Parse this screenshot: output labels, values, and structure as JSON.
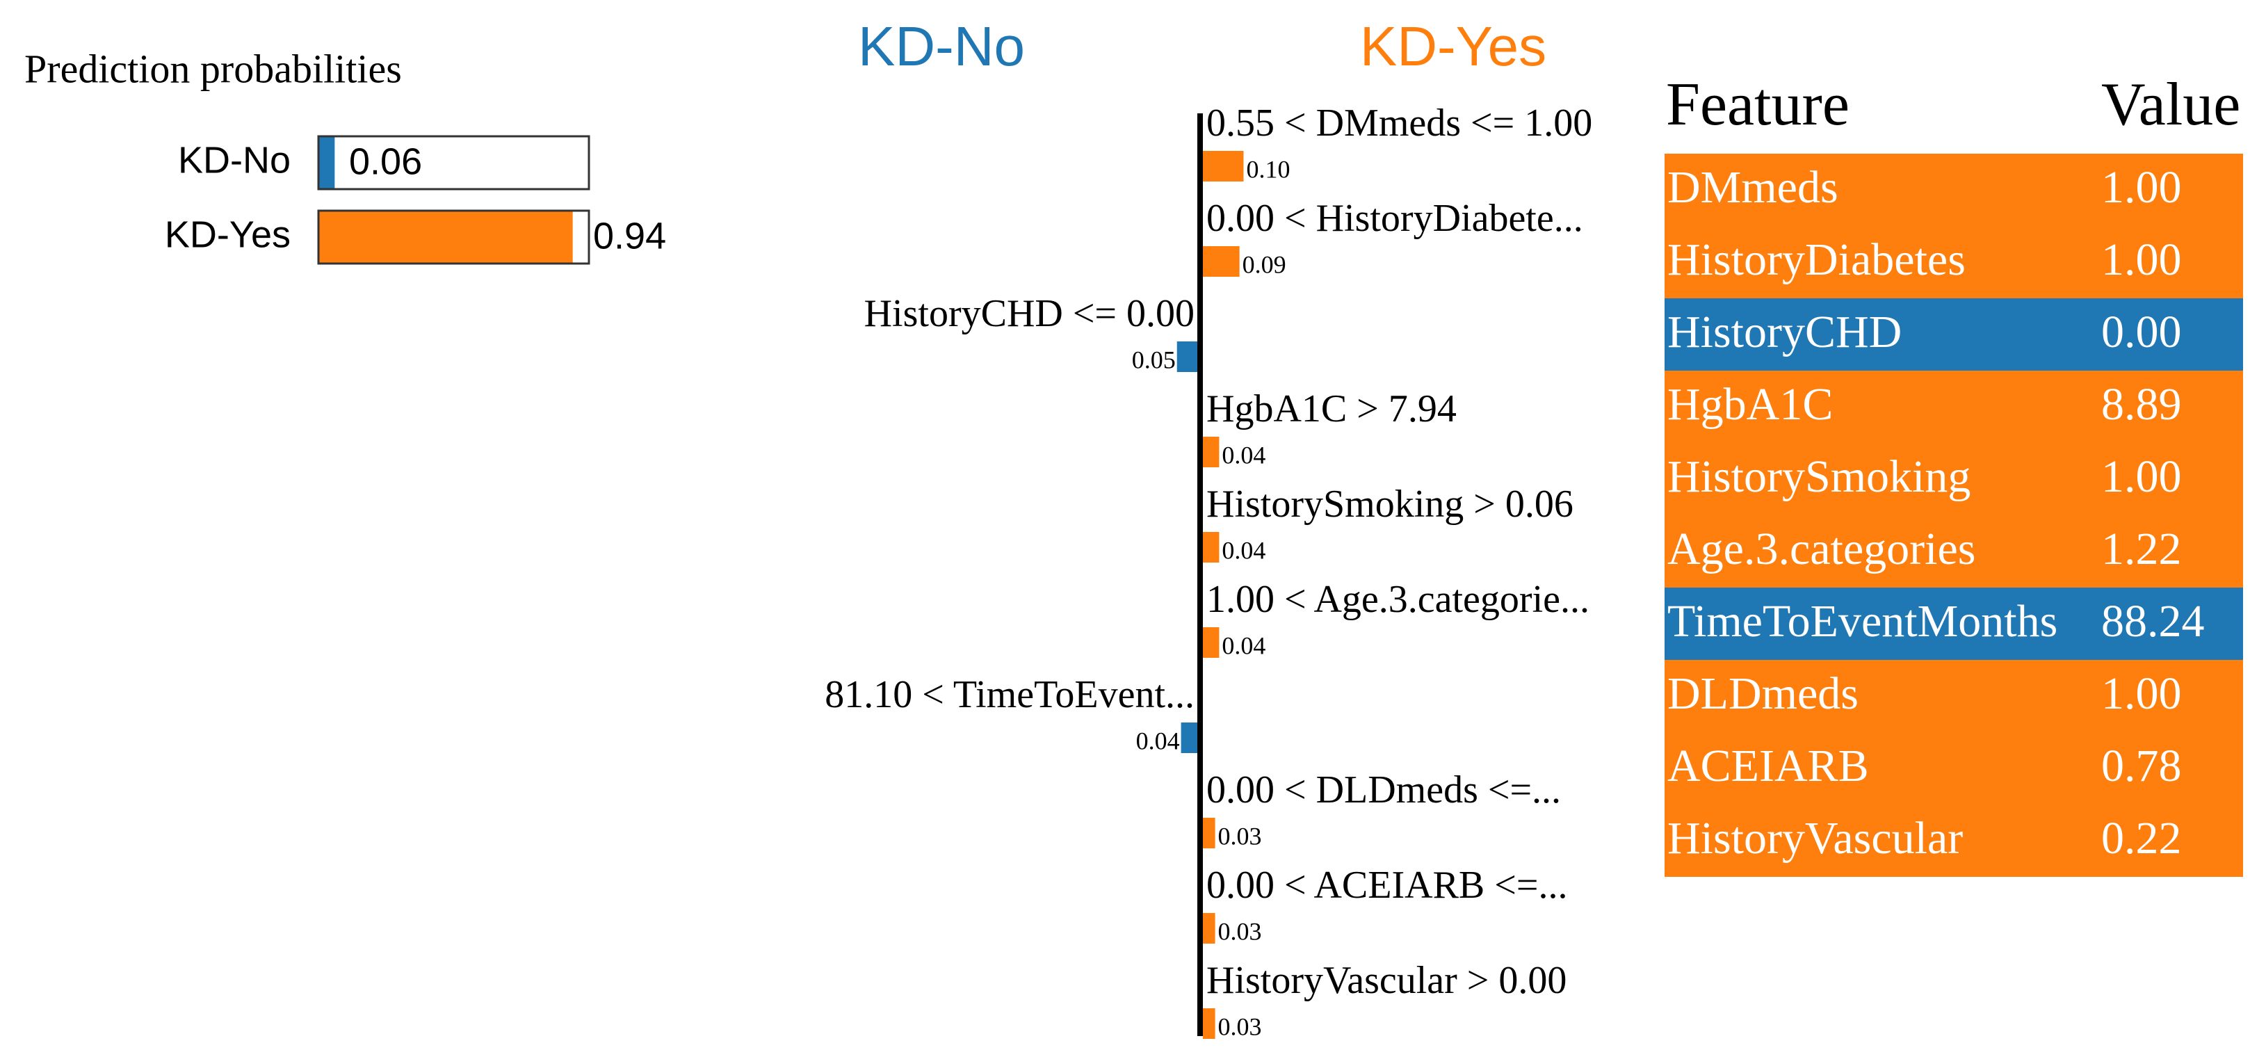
{
  "chart_data": [
    {
      "type": "bar",
      "title": "Prediction probabilities",
      "categories": [
        "KD-No",
        "KD-Yes"
      ],
      "values": [
        0.06,
        0.94
      ],
      "colors": [
        "#1f77b4",
        "#ff7f0e"
      ],
      "xlim": [
        0,
        1
      ]
    },
    {
      "type": "bar",
      "categories": [
        "0.55 < DMmeds <= 1.00",
        "0.00 < HistoryDiabete...",
        "HistoryCHD <= 0.00",
        "HgbA1C > 7.94",
        "HistorySmoking > 0.06",
        "1.00 < Age.3.categorie...",
        "81.10 < TimeToEvent...",
        "0.00 < DLDmeds <=...",
        "0.00 < ACEIARB <=...",
        "HistoryVascular > 0.00"
      ],
      "series": [
        {
          "name": "KD-No",
          "color": "#1f77b4",
          "side": "left",
          "values": [
            null,
            null,
            0.05,
            null,
            null,
            null,
            0.04,
            null,
            null,
            null
          ],
          "value_labels": [
            null,
            null,
            "0.05",
            null,
            null,
            null,
            "0.04",
            null,
            null,
            null
          ]
        },
        {
          "name": "KD-Yes",
          "color": "#ff7f0e",
          "side": "right",
          "values": [
            0.1,
            0.09,
            null,
            0.04,
            0.04,
            0.04,
            null,
            0.03,
            0.03,
            0.03
          ],
          "value_labels": [
            "0.10",
            "0.09",
            null,
            "0.04",
            "0.04",
            "0.04",
            null,
            "0.03",
            "0.03",
            "0.03"
          ]
        }
      ]
    }
  ],
  "table": {
    "columns": [
      "Feature",
      "Value"
    ],
    "rows": [
      [
        "DMmeds",
        "1.00"
      ],
      [
        "HistoryDiabetes",
        "1.00"
      ],
      [
        "HistoryCHD",
        "0.00"
      ],
      [
        "HgbA1C",
        "8.89"
      ],
      [
        "HistorySmoking",
        "1.00"
      ],
      [
        "Age.3.categories",
        "1.22"
      ],
      [
        "TimeToEventMonths",
        "88.24"
      ],
      [
        "DLDmeds",
        "1.00"
      ],
      [
        "ACEIARB",
        "0.78"
      ],
      [
        "HistoryVascular",
        "0.22"
      ]
    ],
    "row_colors": [
      "#ff7f0e",
      "#ff7f0e",
      "#1f77b4",
      "#ff7f0e",
      "#ff7f0e",
      "#ff7f0e",
      "#1f77b4",
      "#ff7f0e",
      "#ff7f0e",
      "#ff7f0e"
    ]
  }
}
